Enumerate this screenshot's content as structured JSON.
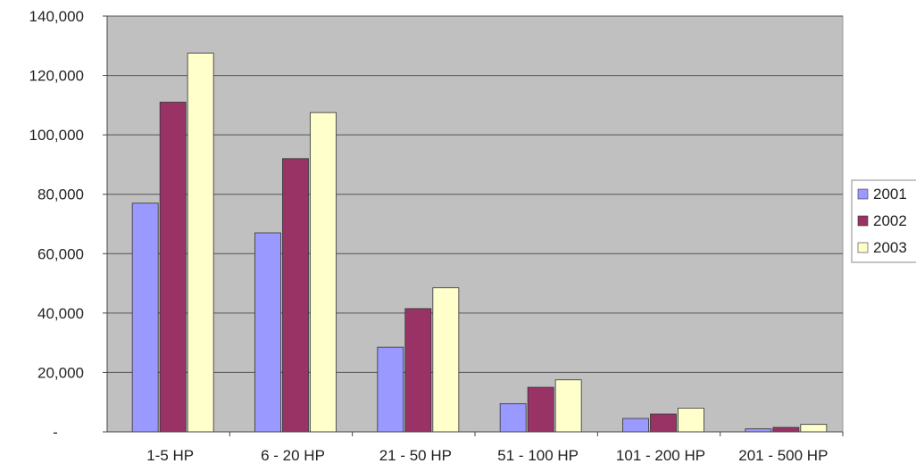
{
  "chart_data": {
    "type": "bar",
    "categories": [
      "1-5 HP",
      "6 - 20 HP",
      "21 - 50 HP",
      "51 - 100 HP",
      "101 - 200 HP",
      "201 - 500 HP"
    ],
    "series": [
      {
        "name": "2001",
        "values": [
          77000,
          67000,
          28500,
          9500,
          4500,
          1000
        ],
        "color": "#9999ff"
      },
      {
        "name": "2002",
        "values": [
          111000,
          92000,
          41500,
          15000,
          6000,
          1500
        ],
        "color": "#993366"
      },
      {
        "name": "2003",
        "values": [
          127500,
          107500,
          48500,
          17500,
          8000,
          2500
        ],
        "color": "#ffffcc"
      }
    ],
    "yticks": [
      "-",
      "20,000",
      "40,000",
      "60,000",
      "80,000",
      "100,000",
      "120,000",
      "140,000"
    ],
    "ylim": [
      0,
      140000
    ],
    "grid": true,
    "plot_background": "#c0c0c0",
    "legend_position": "right"
  }
}
